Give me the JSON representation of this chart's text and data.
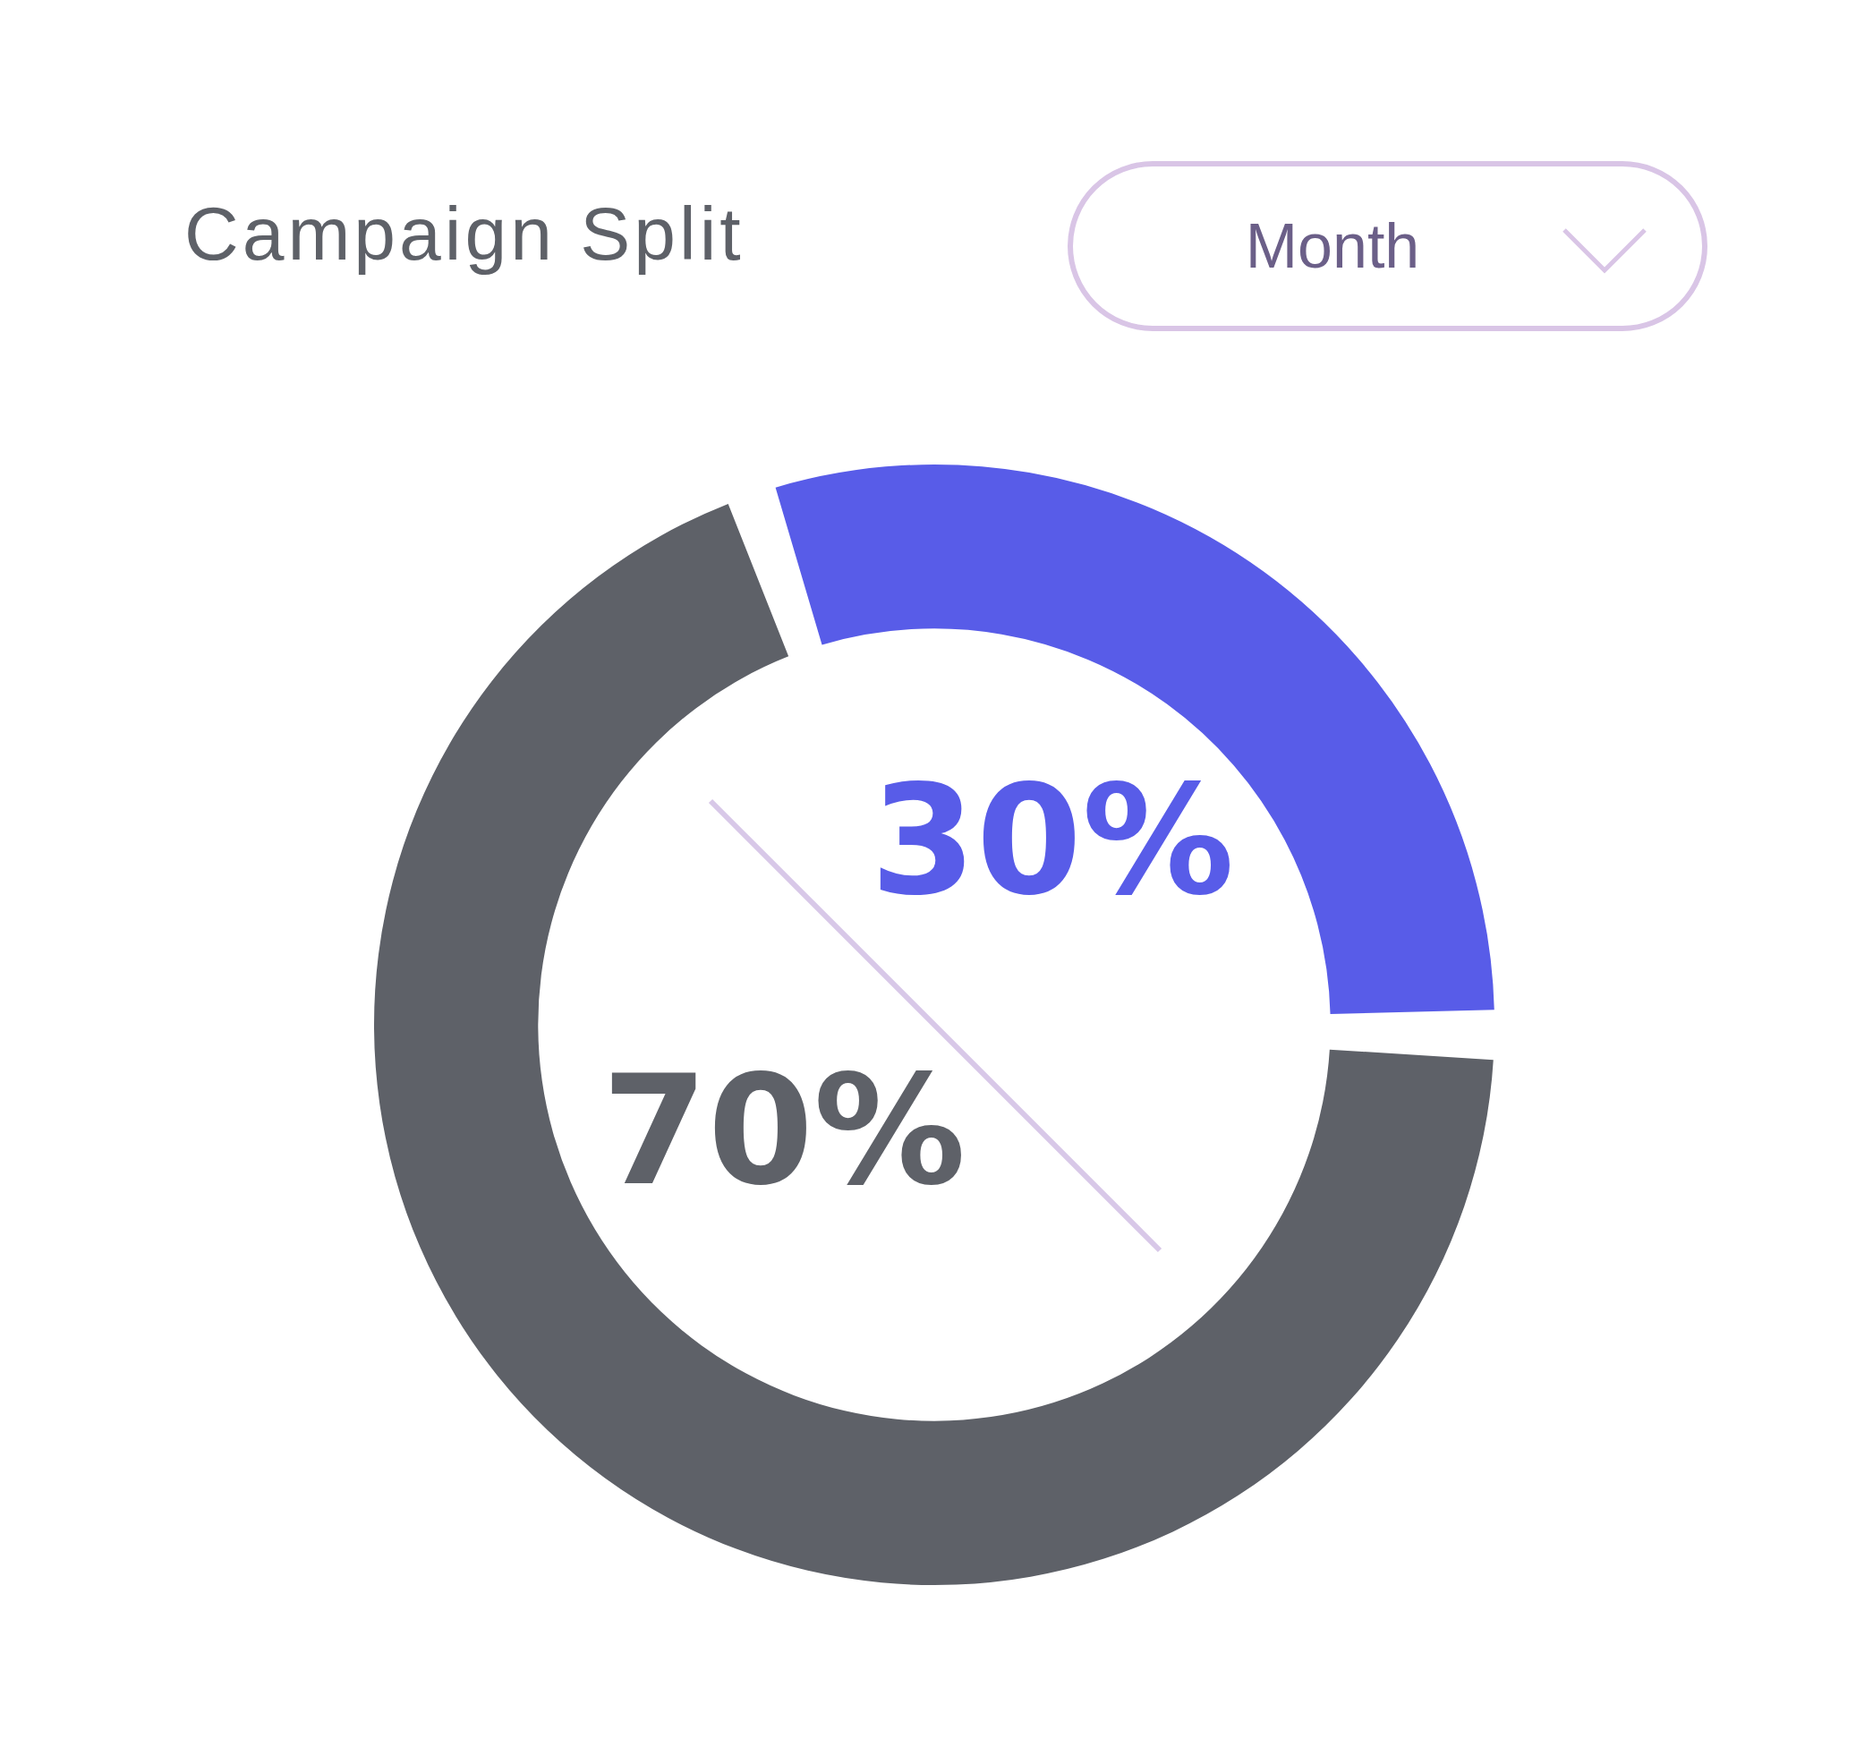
{
  "chart_data": {
    "type": "donut",
    "title": "Campaign Split",
    "categories": [
      null,
      null
    ],
    "values": [
      30,
      70
    ],
    "colors": [
      "#585ce8",
      "#5e6168"
    ],
    "value_labels": [
      "30%",
      "70%"
    ],
    "annotations": [
      "Month"
    ],
    "legend": false
  }
}
